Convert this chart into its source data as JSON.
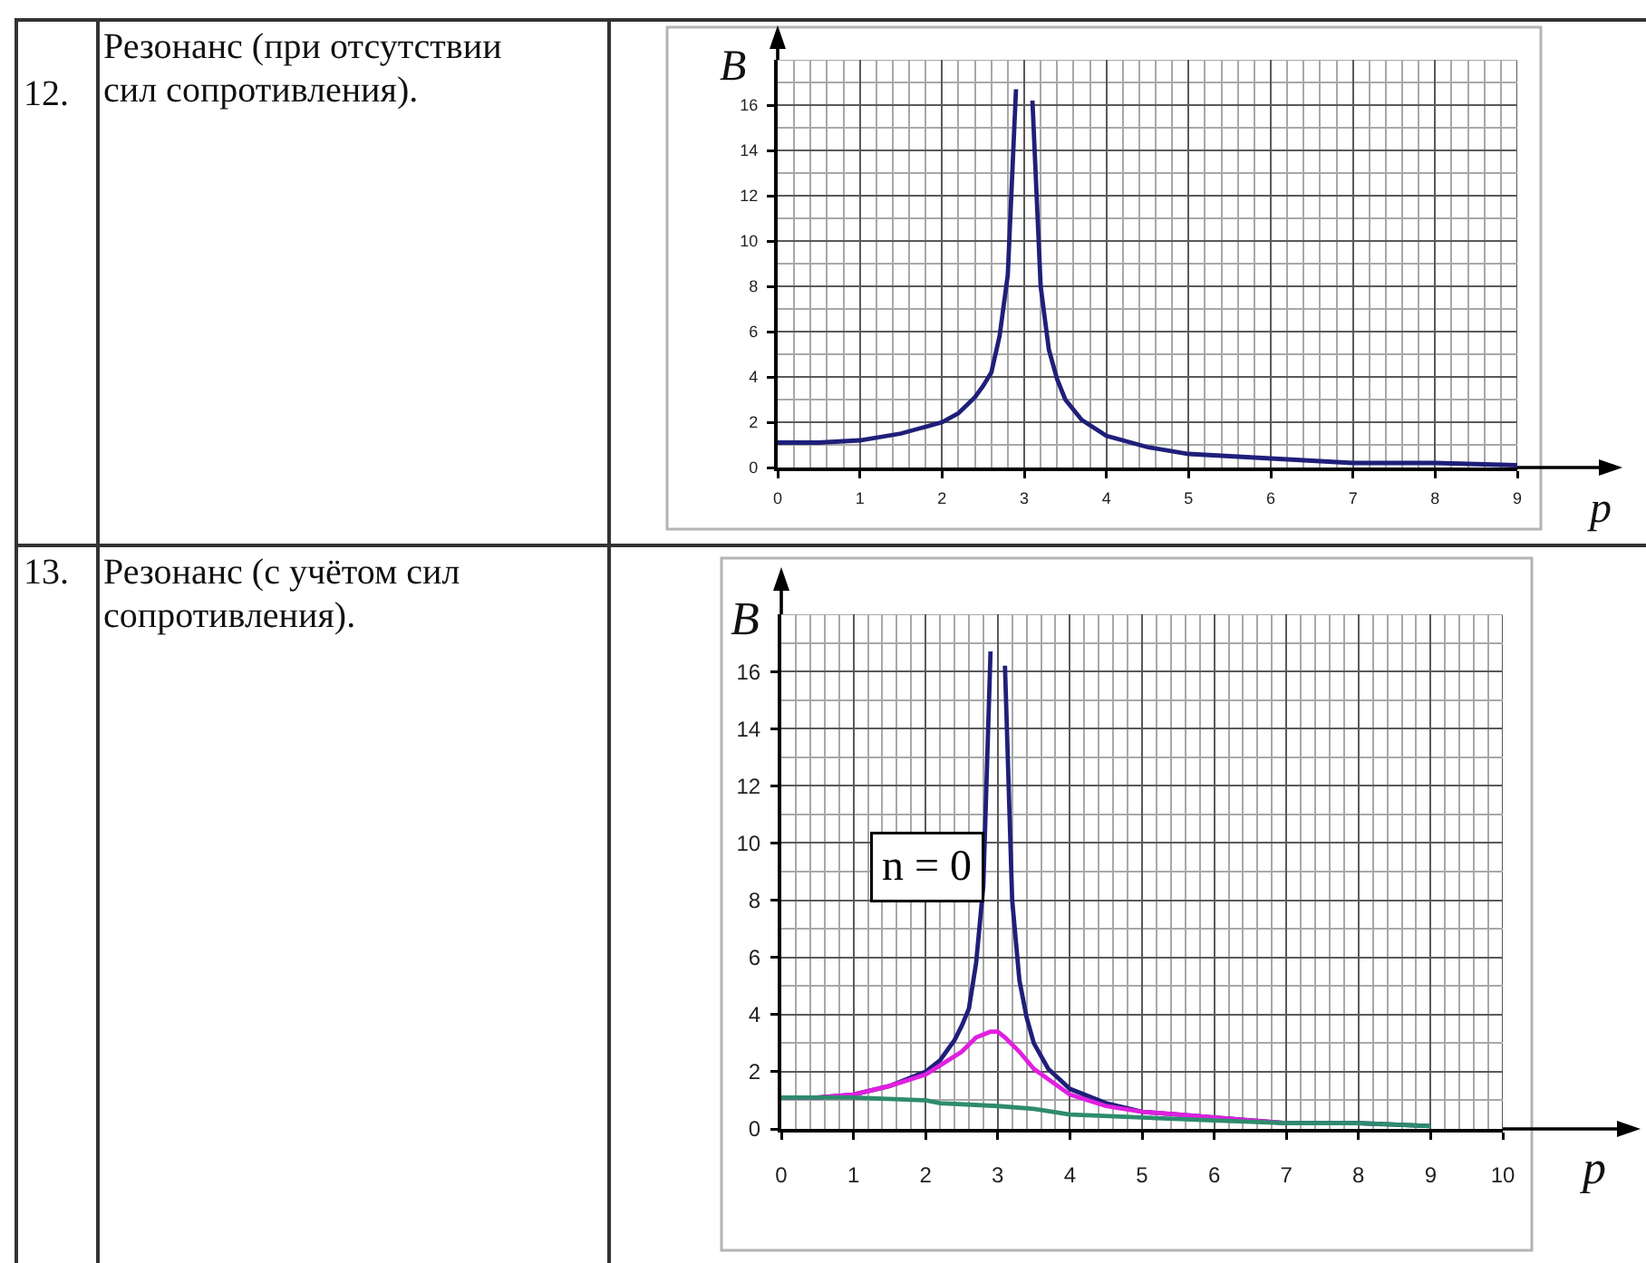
{
  "chart_data": [
    {
      "type": "other",
      "annotations": [
        "12.",
        "Резонанс (при отсутствии сил сопротивления)."
      ]
    },
    {
      "type": "line",
      "xlabel": "p",
      "ylabel": "B",
      "x": [
        0,
        0.5,
        1,
        1.5,
        2,
        2.2,
        2.4,
        2.5,
        2.6,
        2.7,
        2.8,
        2.9,
        3,
        3.1,
        3.2,
        3.3,
        3.4,
        3.5,
        3.7,
        4,
        4.5,
        5,
        5.5,
        6,
        7,
        8,
        9
      ],
      "series": [
        {
          "color": "#1f1f7a",
          "values": [
            1.1,
            1.1,
            1.2,
            1.5,
            2.0,
            2.4,
            3.1,
            3.6,
            4.2,
            5.8,
            8.5,
            16.7,
            null,
            16.2,
            8.0,
            5.2,
            3.9,
            3.0,
            2.1,
            1.4,
            0.9,
            0.6,
            0.5,
            0.4,
            0.2,
            0.2,
            0.1
          ]
        }
      ],
      "xlim": [
        0,
        9
      ],
      "ylim": [
        0,
        18
      ],
      "xticks": [
        0,
        {
          "value": 0.2,
          "label": null
        },
        {
          "value": 0.4,
          "label": null
        },
        {
          "value": 0.6,
          "label": null
        },
        {
          "value": 0.8,
          "label": null
        },
        1,
        {
          "value": 1.2,
          "label": null
        },
        {
          "value": 1.4,
          "label": null
        },
        {
          "value": 1.6,
          "label": null
        },
        {
          "value": 1.8,
          "label": null
        },
        2,
        {
          "value": 2.2,
          "label": null
        },
        {
          "value": 2.4,
          "label": null
        },
        {
          "value": 2.6,
          "label": null
        },
        {
          "value": 2.8,
          "label": null
        },
        3,
        {
          "value": 3.2,
          "label": null
        },
        {
          "value": 3.4,
          "label": null
        },
        {
          "value": 3.6,
          "label": null
        },
        {
          "value": 3.8,
          "label": null
        },
        4,
        {
          "value": 4.2,
          "label": null
        },
        {
          "value": 4.4,
          "label": null
        },
        {
          "value": 4.6,
          "label": null
        },
        {
          "value": 4.8,
          "label": null
        },
        5,
        {
          "value": 5.2,
          "label": null
        },
        {
          "value": 5.4,
          "label": null
        },
        {
          "value": 5.6,
          "label": null
        },
        {
          "value": 5.8,
          "label": null
        },
        6,
        {
          "value": 6.2,
          "label": null
        },
        {
          "value": 6.4,
          "label": null
        },
        {
          "value": 6.6,
          "label": null
        },
        {
          "value": 6.8,
          "label": null
        },
        7,
        {
          "value": 7.2,
          "label": null
        },
        {
          "value": 7.4,
          "label": null
        },
        {
          "value": 7.6,
          "label": null
        },
        {
          "value": 7.8,
          "label": null
        },
        8,
        {
          "value": 8.2,
          "label": null
        },
        {
          "value": 8.4,
          "label": null
        },
        {
          "value": 8.6,
          "label": null
        },
        {
          "value": 8.8,
          "label": null
        },
        9
      ],
      "yticks": [
        0,
        {
          "value": 1,
          "label": null
        },
        2,
        {
          "value": 3,
          "label": null
        },
        4,
        {
          "value": 5,
          "label": null
        },
        6,
        {
          "value": 7,
          "label": null
        },
        8,
        {
          "value": 9,
          "label": null
        },
        10,
        {
          "value": 11,
          "label": null
        },
        12,
        {
          "value": 13,
          "label": null
        },
        14,
        {
          "value": 15,
          "label": null
        },
        16,
        {
          "value": 17,
          "label": null
        },
        {
          "value": 18,
          "label": null
        }
      ],
      "grid": true
    },
    {
      "type": "other",
      "annotations": [
        "13.",
        "Резонанс (с учётом сил сопротивления)."
      ]
    },
    {
      "type": "line",
      "xlabel": "p",
      "ylabel": "B",
      "series": [
        {
          "name": "n = 0",
          "color": "#1f1f7a",
          "x": [
            0,
            0.5,
            1,
            1.5,
            2,
            2.2,
            2.4,
            2.5,
            2.6,
            2.7,
            2.8,
            2.9,
            3,
            3.1,
            3.2,
            3.3,
            3.4,
            3.5,
            3.7,
            4,
            4.5,
            5,
            5.5,
            6,
            7,
            8,
            9
          ],
          "values": [
            1.1,
            1.1,
            1.2,
            1.5,
            2.0,
            2.4,
            3.1,
            3.6,
            4.2,
            5.8,
            8.5,
            16.7,
            null,
            16.2,
            8.0,
            5.2,
            3.9,
            3.0,
            2.1,
            1.4,
            0.9,
            0.6,
            0.5,
            0.4,
            0.2,
            0.2,
            0.1
          ]
        },
        {
          "color": "#e020e0",
          "x": [
            0,
            0.5,
            1,
            1.5,
            2,
            2.5,
            2.7,
            2.9,
            3,
            3.1,
            3.3,
            3.5,
            4,
            4.5,
            5,
            5.5,
            6,
            6.5,
            7
          ],
          "values": [
            1.1,
            1.1,
            1.2,
            1.5,
            1.9,
            2.7,
            3.2,
            3.4,
            3.4,
            3.2,
            2.7,
            2.1,
            1.2,
            0.8,
            0.6,
            0.5,
            0.4,
            0.3,
            0.2
          ]
        },
        {
          "color": "#2e8b6e",
          "x": [
            0,
            1,
            2,
            2.2,
            3,
            3.5,
            4,
            5,
            6,
            7,
            8,
            9
          ],
          "values": [
            1.1,
            1.1,
            1.0,
            0.9,
            0.8,
            0.7,
            0.5,
            0.4,
            0.3,
            0.2,
            0.2,
            0.1
          ]
        }
      ],
      "xlim": [
        0,
        10
      ],
      "ylim": [
        0,
        18
      ],
      "xticks": [
        0,
        {
          "value": 0.2,
          "label": null
        },
        {
          "value": 0.4,
          "label": null
        },
        {
          "value": 0.6,
          "label": null
        },
        {
          "value": 0.8,
          "label": null
        },
        1,
        {
          "value": 1.2,
          "label": null
        },
        {
          "value": 1.4,
          "label": null
        },
        {
          "value": 1.6,
          "label": null
        },
        {
          "value": 1.8,
          "label": null
        },
        2,
        {
          "value": 2.2,
          "label": null
        },
        {
          "value": 2.4,
          "label": null
        },
        {
          "value": 2.6,
          "label": null
        },
        {
          "value": 2.8,
          "label": null
        },
        3,
        {
          "value": 3.2,
          "label": null
        },
        {
          "value": 3.4,
          "label": null
        },
        {
          "value": 3.6,
          "label": null
        },
        {
          "value": 3.8,
          "label": null
        },
        4,
        {
          "value": 4.2,
          "label": null
        },
        {
          "value": 4.4,
          "label": null
        },
        {
          "value": 4.6,
          "label": null
        },
        {
          "value": 4.8,
          "label": null
        },
        5,
        {
          "value": 5.2,
          "label": null
        },
        {
          "value": 5.4,
          "label": null
        },
        {
          "value": 5.6,
          "label": null
        },
        {
          "value": 5.8,
          "label": null
        },
        6,
        {
          "value": 6.2,
          "label": null
        },
        {
          "value": 6.4,
          "label": null
        },
        {
          "value": 6.6,
          "label": null
        },
        {
          "value": 6.8,
          "label": null
        },
        7,
        {
          "value": 7.2,
          "label": null
        },
        {
          "value": 7.4,
          "label": null
        },
        {
          "value": 7.6,
          "label": null
        },
        {
          "value": 7.8,
          "label": null
        },
        8,
        {
          "value": 8.2,
          "label": null
        },
        {
          "value": 8.4,
          "label": null
        },
        {
          "value": 8.6,
          "label": null
        },
        {
          "value": 8.8,
          "label": null
        },
        9,
        {
          "value": 9.2,
          "label": null
        },
        {
          "value": 9.4,
          "label": null
        },
        {
          "value": 9.6,
          "label": null
        },
        {
          "value": 9.8,
          "label": null
        },
        10
      ],
      "yticks": [
        0,
        {
          "value": 1,
          "label": null
        },
        2,
        {
          "value": 3,
          "label": null
        },
        4,
        {
          "value": 5,
          "label": null
        },
        6,
        {
          "value": 7,
          "label": null
        },
        8,
        {
          "value": 9,
          "label": null
        },
        10,
        {
          "value": 11,
          "label": null
        },
        12,
        {
          "value": 13,
          "label": null
        },
        14,
        {
          "value": 15,
          "label": null
        },
        16,
        {
          "value": 17,
          "label": null
        },
        {
          "value": 18,
          "label": null
        }
      ],
      "grid": true
    }
  ]
}
